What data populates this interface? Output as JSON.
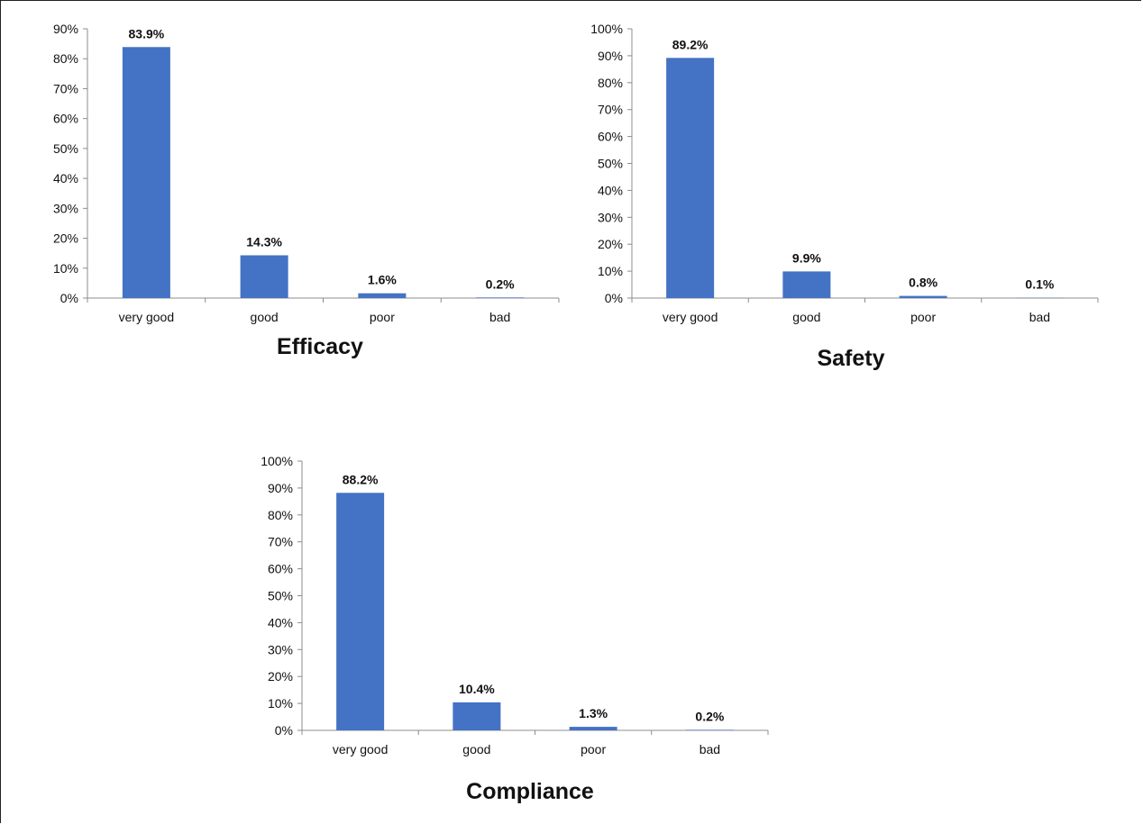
{
  "chart_data": [
    {
      "type": "bar",
      "title": "Efficacy",
      "categories": [
        "very good",
        "good",
        "poor",
        "bad"
      ],
      "values": [
        83.9,
        14.3,
        1.6,
        0.2
      ],
      "data_labels": [
        "83.9%",
        "14.3%",
        "1.6%",
        "0.2%"
      ],
      "ylim": [
        0,
        90
      ],
      "yticks": [
        "0%",
        "10%",
        "20%",
        "30%",
        "40%",
        "50%",
        "60%",
        "70%",
        "80%",
        "90%"
      ],
      "grid": false,
      "color": "#4472c4"
    },
    {
      "type": "bar",
      "title": "Safety",
      "categories": [
        "very good",
        "good",
        "poor",
        "bad"
      ],
      "values": [
        89.2,
        9.9,
        0.8,
        0.1
      ],
      "data_labels": [
        "89.2%",
        "9.9%",
        "0.8%",
        "0.1%"
      ],
      "ylim": [
        0,
        100
      ],
      "yticks": [
        "0%",
        "10%",
        "20%",
        "30%",
        "40%",
        "50%",
        "60%",
        "70%",
        "80%",
        "90%",
        "100%"
      ],
      "grid": false,
      "color": "#4472c4"
    },
    {
      "type": "bar",
      "title": "Compliance",
      "categories": [
        "very good",
        "good",
        "poor",
        "bad"
      ],
      "values": [
        88.2,
        10.4,
        1.3,
        0.2
      ],
      "data_labels": [
        "88.2%",
        "10.4%",
        "1.3%",
        "0.2%"
      ],
      "ylim": [
        0,
        100
      ],
      "yticks": [
        "0%",
        "10%",
        "20%",
        "30%",
        "40%",
        "50%",
        "60%",
        "70%",
        "80%",
        "90%",
        "100%"
      ],
      "grid": false,
      "color": "#4472c4"
    }
  ]
}
